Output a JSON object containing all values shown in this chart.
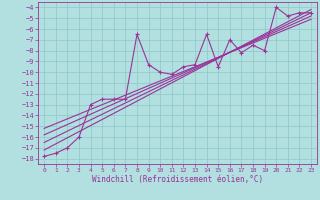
{
  "xlabel": "Windchill (Refroidissement éolien,°C)",
  "bg_color": "#b2dfdf",
  "grid_color": "#8fc8c8",
  "line_color": "#993399",
  "xlim": [
    -0.5,
    23.5
  ],
  "ylim": [
    -18.5,
    -3.5
  ],
  "xticks": [
    0,
    1,
    2,
    3,
    4,
    5,
    6,
    7,
    8,
    9,
    10,
    11,
    12,
    13,
    14,
    15,
    16,
    17,
    18,
    19,
    20,
    21,
    22,
    23
  ],
  "yticks": [
    -18,
    -17,
    -16,
    -15,
    -14,
    -13,
    -12,
    -11,
    -10,
    -9,
    -8,
    -7,
    -6,
    -5,
    -4
  ],
  "data_x": [
    0,
    1,
    2,
    3,
    4,
    5,
    6,
    7,
    8,
    9,
    10,
    11,
    12,
    13,
    14,
    15,
    16,
    17,
    18,
    19,
    20,
    21,
    22,
    23
  ],
  "data_y": [
    -17.8,
    -17.5,
    -17.0,
    -16.0,
    -13.0,
    -12.5,
    -12.5,
    -12.5,
    -6.5,
    -9.3,
    -10.0,
    -10.2,
    -9.5,
    -9.3,
    -6.5,
    -9.5,
    -7.0,
    -8.2,
    -7.5,
    -8.0,
    -4.0,
    -4.8,
    -4.5,
    -4.5
  ],
  "reg_lines": [
    {
      "x": [
        0,
        23
      ],
      "y": [
        -17.2,
        -4.2
      ]
    },
    {
      "x": [
        0,
        23
      ],
      "y": [
        -16.5,
        -4.5
      ]
    },
    {
      "x": [
        0,
        23
      ],
      "y": [
        -15.8,
        -4.8
      ]
    },
    {
      "x": [
        0,
        23
      ],
      "y": [
        -15.2,
        -5.1
      ]
    }
  ]
}
